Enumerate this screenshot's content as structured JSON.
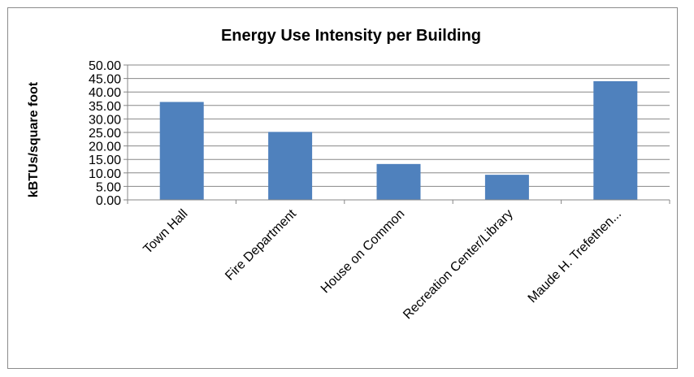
{
  "chart_data": {
    "type": "bar",
    "title": "Energy Use Intensity per Building",
    "xlabel": "",
    "ylabel": "kBTUs/square foot",
    "categories": [
      "Town Hall",
      "Fire Department",
      "House on Common",
      "Recreation Center/Library",
      "Maude H. Trefethen..."
    ],
    "values": [
      36.3,
      25.2,
      13.3,
      9.3,
      44.0
    ],
    "ylim": [
      0,
      50
    ],
    "yticks": [
      "0.00",
      "5.00",
      "10.00",
      "15.00",
      "20.00",
      "25.00",
      "30.00",
      "35.00",
      "40.00",
      "45.00",
      "50.00"
    ],
    "grid": true,
    "legend": "none",
    "bar_color": "#4f81bd",
    "grid_color": "#878787"
  }
}
